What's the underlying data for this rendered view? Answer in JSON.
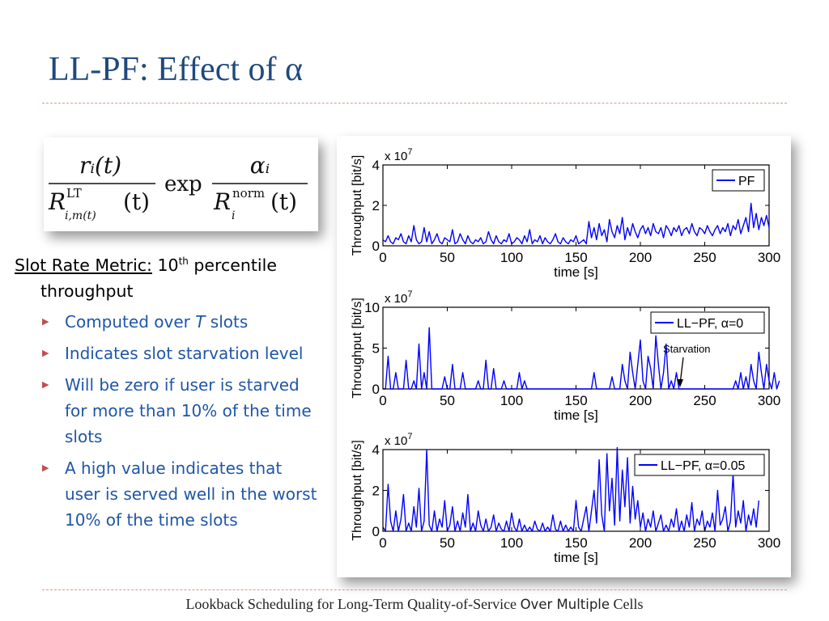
{
  "slide": {
    "title": "LL-PF: Effect of α",
    "footer_main": "Lookback Scheduling for Long-Term Quality-of-Service",
    "footer_alt": "Over Multiple",
    "footer_end": "Cells"
  },
  "colors": {
    "title": "#1f497d",
    "bullet_text": "#1f56a8",
    "bullet_marker": "#c0504d",
    "rule": "#d99694",
    "series": "#0000ff"
  },
  "formula": {
    "numerator1": "rᵢ(t)",
    "denominator1_base": "R",
    "denominator1_sup": "LT",
    "denominator1_sub": "i,m(t)",
    "denominator1_arg": "(t)",
    "operator": "exp",
    "numerator2": "αᵢ",
    "denominator2_base": "R",
    "denominator2_sup": "norm",
    "denominator2_sub": "i",
    "denominator2_arg": "(t)"
  },
  "body": {
    "lead_label": "Slot Rate Metric:",
    "lead_rest_pre": " 10",
    "lead_sup": "th",
    "lead_rest_post": " percentile throughput",
    "bullet_marker": "▶",
    "bullets": [
      {
        "pre": "Computed over ",
        "em": "T",
        "post": " slots"
      },
      {
        "pre": "Indicates slot starvation level",
        "em": "",
        "post": ""
      },
      {
        "pre": "Will be zero if user is starved for more than 10% of the time slots",
        "em": "",
        "post": ""
      },
      {
        "pre": "A high value indicates that user is served well in the worst 10% of the time slots",
        "em": "",
        "post": ""
      }
    ]
  },
  "chart_data": [
    {
      "type": "line",
      "xlabel": "time [s]",
      "ylabel": "Throughput [bit/s]",
      "y_multiplier": "x 10^7",
      "xlim": [
        0,
        300
      ],
      "ylim": [
        0,
        4
      ],
      "x_ticks": [
        "0",
        "50",
        "100",
        "150",
        "200",
        "250",
        "300"
      ],
      "y_ticks": [
        "0",
        "2",
        "4"
      ],
      "legend": "PF",
      "legend_position": "top-right",
      "annotation": "",
      "series": [
        {
          "name": "PF",
          "x_step": 2,
          "values": [
            0.3,
            0.2,
            0.5,
            0.2,
            0.1,
            0.4,
            0.3,
            0.6,
            0.2,
            0.1,
            0.5,
            0.2,
            1.0,
            0.3,
            0.1,
            0.2,
            0.9,
            0.2,
            0.7,
            0.1,
            0.3,
            0.6,
            0.2,
            0.1,
            0.4,
            0.3,
            0.2,
            0.8,
            0.1,
            0.2,
            0.6,
            0.3,
            0.1,
            0.5,
            0.2,
            0.1,
            0.3,
            0.2,
            0.4,
            0.1,
            0.2,
            0.7,
            0.3,
            0.1,
            0.5,
            0.2,
            0.1,
            0.3,
            0.2,
            0.6,
            0.1,
            0.2,
            0.4,
            0.3,
            0.1,
            0.5,
            0.2,
            0.8,
            0.1,
            0.3,
            0.2,
            0.5,
            0.1,
            0.4,
            0.2,
            0.1,
            0.3,
            0.6,
            0.2,
            0.1,
            0.4,
            0.2,
            0.1,
            0.3,
            0.2,
            0.5,
            0.1,
            0.2,
            0.3,
            0.1,
            1.2,
            0.4,
            0.9,
            0.3,
            1.1,
            0.5,
            0.8,
            0.2,
            1.3,
            0.7,
            0.4,
            1.0,
            0.6,
            1.4,
            0.3,
            0.9,
            0.5,
            1.1,
            0.7,
            0.4,
            0.8,
            1.0,
            0.6,
            0.9,
            0.5,
            1.1,
            0.7,
            0.6,
            0.9,
            0.4,
            1.0,
            0.8,
            0.5,
            0.9,
            0.7,
            1.0,
            0.5,
            0.8,
            0.9,
            0.6,
            1.1,
            0.7,
            0.5,
            0.9,
            0.8,
            0.6,
            1.0,
            0.7,
            0.5,
            0.8,
            1.0,
            0.6,
            0.9,
            0.7,
            1.1,
            0.5,
            1.0,
            0.8,
            1.3,
            0.6,
            1.0,
            1.4,
            0.7,
            2.1,
            0.9,
            1.6,
            0.8,
            1.4,
            1.0,
            1.5,
            0.9
          ]
        }
      ]
    },
    {
      "type": "line",
      "xlabel": "time [s]",
      "ylabel": "Throughput [bit/s]",
      "y_multiplier": "x 10^7",
      "xlim": [
        0,
        300
      ],
      "ylim": [
        0,
        10
      ],
      "x_ticks": [
        "0",
        "50",
        "100",
        "150",
        "200",
        "250",
        "300"
      ],
      "y_ticks": [
        "0",
        "5",
        "10"
      ],
      "legend": "LL−PF, α=0",
      "legend_position": "top-right",
      "annotation": "Starvation",
      "series": [
        {
          "name": "LL−PF, α=0",
          "x_step": 2,
          "values": [
            0,
            0,
            4.0,
            0,
            0,
            2.0,
            0,
            0,
            0,
            3.5,
            0,
            0,
            1.0,
            0,
            5.5,
            0,
            2.0,
            0,
            7.5,
            0,
            0,
            0,
            0,
            0,
            1.5,
            0,
            0,
            3.0,
            0,
            0,
            0,
            2.0,
            0,
            0,
            0,
            0,
            0,
            1.0,
            0,
            0,
            3.5,
            0,
            0,
            2.5,
            0,
            0,
            0,
            1.0,
            0,
            0,
            0,
            0,
            0,
            2.0,
            0,
            1.0,
            0,
            0,
            0,
            0,
            0,
            0,
            0,
            0,
            0,
            0,
            0,
            0,
            0,
            0,
            0,
            0,
            0,
            0,
            0,
            0,
            0,
            0,
            0,
            0,
            0,
            0,
            2.0,
            0,
            0,
            0,
            0,
            0,
            0,
            1.5,
            0,
            0,
            0,
            3.0,
            1.0,
            0,
            4.5,
            2.0,
            0,
            3.0,
            6.0,
            1.0,
            0,
            4.0,
            2.5,
            0,
            6.5,
            3.0,
            0,
            2.0,
            5.5,
            0,
            1.0,
            0,
            2.0,
            0,
            0,
            0,
            0,
            0,
            0,
            0,
            0,
            0,
            0,
            0,
            0,
            0,
            0,
            0,
            0,
            0,
            0,
            0,
            0,
            0,
            0,
            1.0,
            0,
            2.0,
            0,
            1.5,
            0,
            3.0,
            1.0,
            0,
            4.5,
            2.0,
            0,
            3.0,
            1.0,
            0,
            2.0,
            0,
            1.0
          ]
        }
      ]
    },
    {
      "type": "line",
      "xlabel": "time [s]",
      "ylabel": "Throughput [bit/s]",
      "y_multiplier": "x 10^7",
      "xlim": [
        0,
        300
      ],
      "ylim": [
        0,
        4
      ],
      "x_ticks": [
        "0",
        "50",
        "100",
        "150",
        "200",
        "250",
        "300"
      ],
      "y_ticks": [
        "0",
        "2",
        "4"
      ],
      "legend": "LL−PF, α=0.05",
      "legend_position": "top-right",
      "annotation": "",
      "series": [
        {
          "name": "LL−PF, α=0.05",
          "x_step": 2,
          "values": [
            0.2,
            0,
            2.3,
            0.5,
            0,
            1.0,
            0,
            0.6,
            1.8,
            0,
            0.4,
            0,
            1.2,
            0.2,
            2.1,
            0,
            0.5,
            4.0,
            0.3,
            0,
            1.0,
            0,
            0.6,
            0.2,
            1.5,
            0,
            0.3,
            1.2,
            0,
            0.5,
            0,
            0.9,
            0.2,
            1.8,
            0,
            0.4,
            0,
            1.0,
            0.3,
            0,
            0.6,
            0,
            0.2,
            0.8,
            0,
            0.4,
            0.1,
            0,
            0.5,
            0,
            0.9,
            0.2,
            0,
            0.6,
            0,
            0.3,
            0,
            0.2,
            0,
            0.5,
            0.1,
            0,
            0.4,
            0,
            0.2,
            0,
            0.8,
            0.1,
            0,
            0.5,
            0,
            0.3,
            0,
            0.2,
            0,
            1.5,
            0.2,
            0,
            0.6,
            1.2,
            0,
            1.0,
            2.0,
            0.4,
            3.5,
            0.8,
            0,
            3.8,
            1.0,
            2.6,
            0.3,
            4.1,
            0.5,
            3.0,
            1.2,
            3.6,
            0.4,
            2.2,
            0.6,
            1.5,
            0.2,
            0.9,
            0,
            0.6,
            0.2,
            1.0,
            0,
            0.4,
            0.8,
            0,
            0.3,
            0,
            0.6,
            0.2,
            1.1,
            0,
            0.5,
            0,
            0.8,
            0.2,
            1.4,
            0,
            0.6,
            0.3,
            1.0,
            0,
            0.5,
            0.2,
            0.9,
            0,
            2.0,
            0.3,
            0.6,
            1.2,
            0,
            0.5,
            2.8,
            0.2,
            1.0,
            0.4,
            1.5,
            0,
            0.8,
            0.3,
            1.1,
            0.2,
            1.5
          ]
        }
      ]
    }
  ]
}
